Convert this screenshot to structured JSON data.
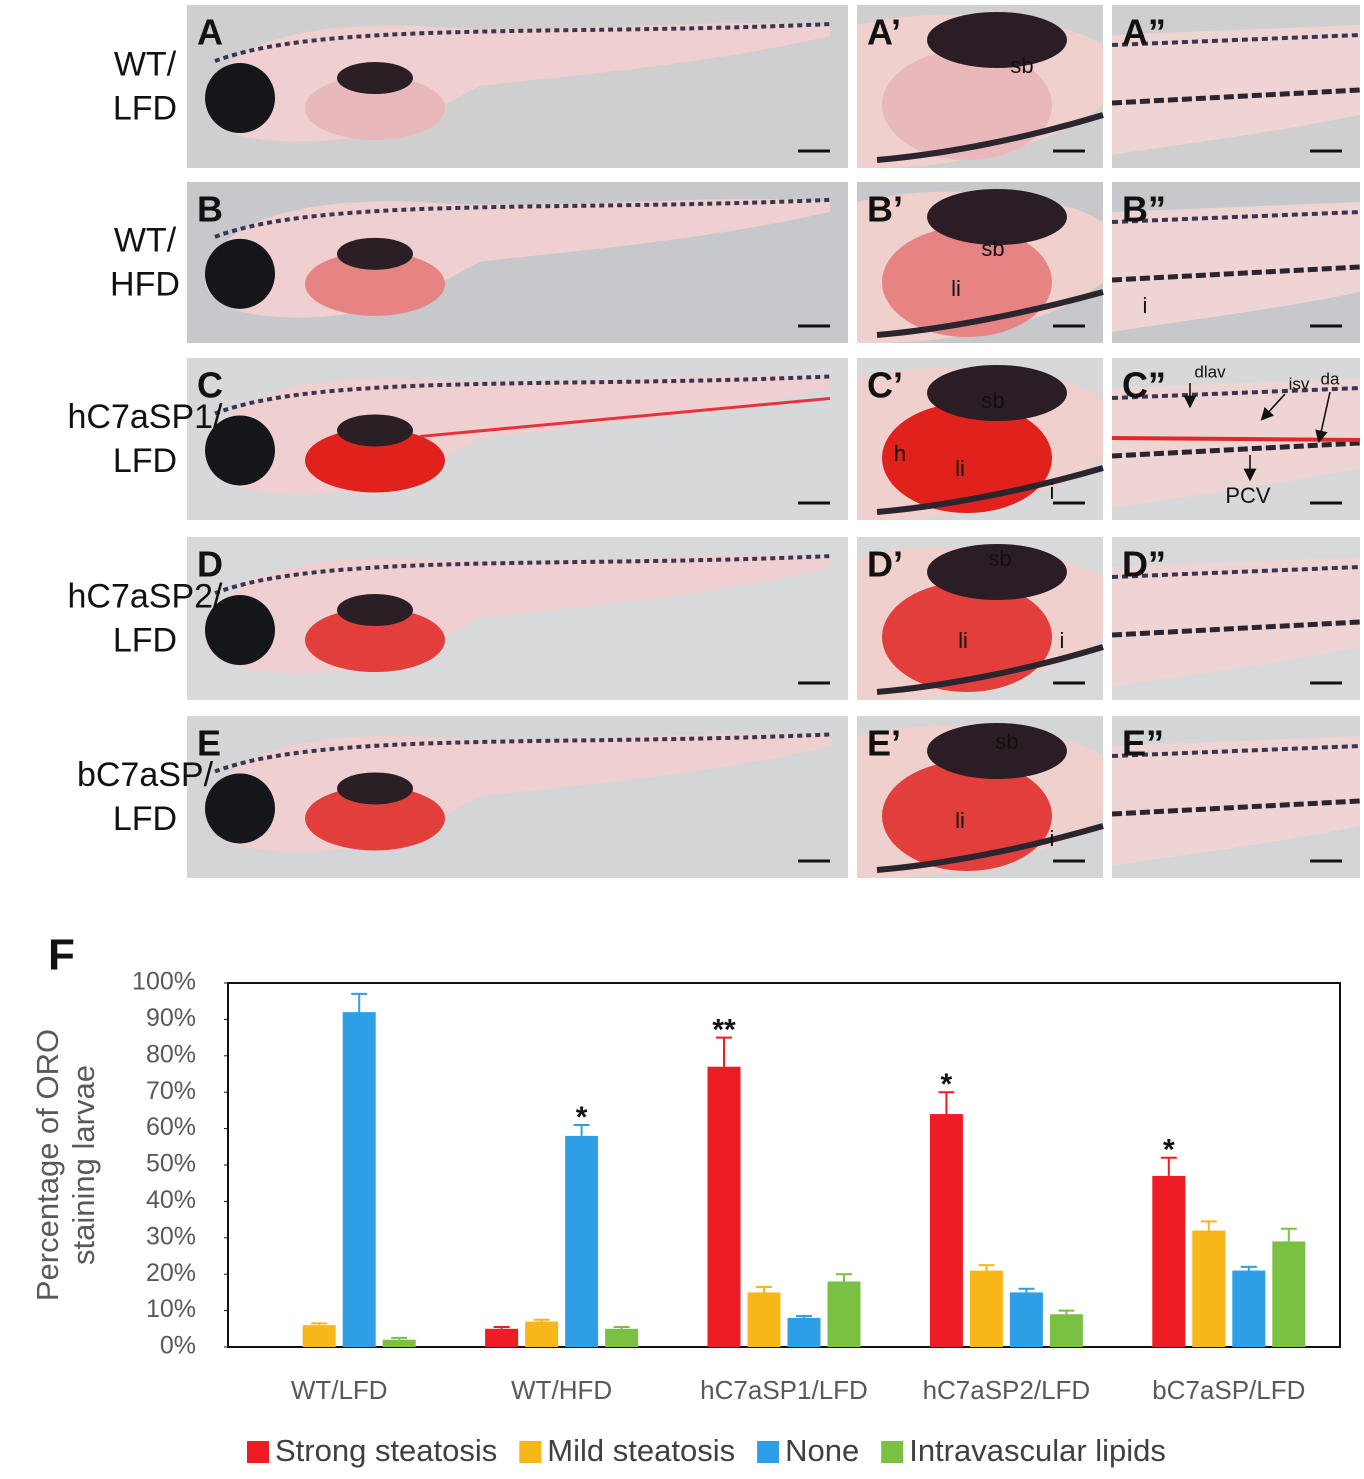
{
  "figure": {
    "rows": [
      {
        "label": [
          "WT/",
          "LFD"
        ],
        "panels": [
          {
            "letter": "A"
          },
          {
            "letter": "A’",
            "notes": [
              "sb"
            ]
          },
          {
            "letter": "A”"
          }
        ]
      },
      {
        "label": [
          "WT/",
          "HFD"
        ],
        "panels": [
          {
            "letter": "B"
          },
          {
            "letter": "B’",
            "notes": [
              "sb",
              "li"
            ]
          },
          {
            "letter": "B”",
            "notes": [
              "i"
            ]
          }
        ]
      },
      {
        "label": [
          "hC7aSP1/",
          "LFD"
        ],
        "panels": [
          {
            "letter": "C"
          },
          {
            "letter": "C’",
            "notes": [
              "sb",
              "h",
              "li",
              "i"
            ]
          },
          {
            "letter": "C”",
            "notes": [
              "dlav",
              "isv",
              "da",
              "PCV"
            ]
          }
        ]
      },
      {
        "label": [
          "hC7aSP2/",
          "LFD"
        ],
        "panels": [
          {
            "letter": "D"
          },
          {
            "letter": "D’",
            "notes": [
              "sb",
              "li",
              "i"
            ]
          },
          {
            "letter": "D”"
          }
        ]
      },
      {
        "label": [
          "bC7aSP/",
          "LFD"
        ],
        "panels": [
          {
            "letter": "E"
          },
          {
            "letter": "E’",
            "notes": [
              "sb",
              "li",
              "i"
            ]
          },
          {
            "letter": "E”"
          }
        ]
      }
    ]
  },
  "chart_data": {
    "type": "bar",
    "panel_label": "F",
    "ylabel": [
      "Percentage of ORO",
      "staining  larvae"
    ],
    "categories": [
      "WT/LFD",
      "WT/HFD",
      "hC7aSP1/LFD",
      "hC7aSP2/LFD",
      "bC7aSP/LFD"
    ],
    "series": [
      {
        "name": "Strong steatosis",
        "color": "#ee1c25",
        "values": [
          0,
          5,
          77,
          64,
          47
        ],
        "errors": [
          0,
          0.5,
          8,
          6,
          5
        ],
        "significance": [
          null,
          null,
          "**",
          "*",
          "*"
        ]
      },
      {
        "name": "Mild steatosis",
        "color": "#f7b718",
        "values": [
          6,
          7,
          15,
          21,
          32
        ],
        "errors": [
          0.5,
          0.5,
          1.5,
          1.5,
          2.5
        ]
      },
      {
        "name": "None",
        "color": "#2e9fe6",
        "values": [
          92,
          58,
          8,
          15,
          21
        ],
        "errors": [
          5,
          3,
          0.5,
          1,
          1
        ],
        "significance": [
          null,
          "*",
          null,
          null,
          null
        ]
      },
      {
        "name": "Intravascular lipids",
        "color": "#7ac143",
        "values": [
          2,
          5,
          18,
          9,
          29
        ],
        "errors": [
          0.5,
          0.5,
          2,
          1,
          3.5
        ]
      }
    ],
    "ylim": [
      0,
      100
    ],
    "yticks": [
      {
        "value": 0,
        "label": "0%"
      },
      {
        "value": 10,
        "label": "10%"
      },
      {
        "value": 20,
        "label": "20%"
      },
      {
        "value": 30,
        "label": "30%"
      },
      {
        "value": 40,
        "label": "40%"
      },
      {
        "value": 50,
        "label": "50%"
      },
      {
        "value": 60,
        "label": "60%"
      },
      {
        "value": 70,
        "label": "70%"
      },
      {
        "value": 80,
        "label": "80%"
      },
      {
        "value": 90,
        "label": "90%"
      },
      {
        "value": 100,
        "label": "100%"
      }
    ],
    "legend": "bottom"
  }
}
